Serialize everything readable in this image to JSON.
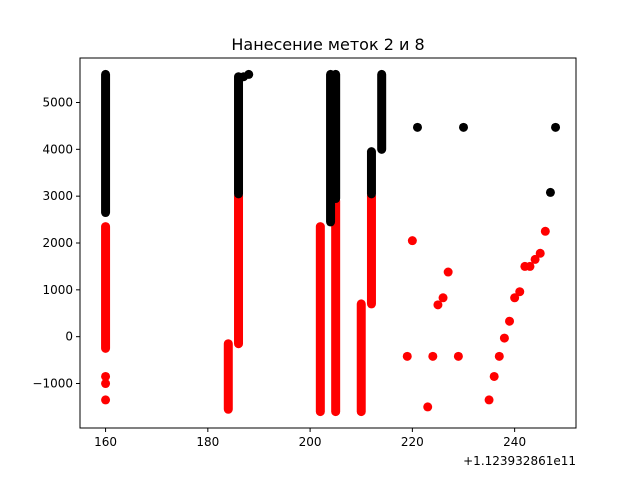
{
  "chart_data": {
    "type": "scatter",
    "title": "Нанесение меток 2 и 8",
    "xlabel": "",
    "ylabel": "",
    "x_offset_label": "+1.123932861e11",
    "xlim": [
      155,
      252
    ],
    "ylim": [
      -1950,
      5950
    ],
    "xticks": [
      160,
      180,
      200,
      220,
      240
    ],
    "yticks": [
      -1000,
      0,
      1000,
      2000,
      3000,
      4000,
      5000
    ],
    "ytick_labels": [
      "−1000",
      "0",
      "1000",
      "2000",
      "3000",
      "4000",
      "5000"
    ],
    "grid": false,
    "legend": "none",
    "series": [
      {
        "color": "#ff0000",
        "segments": [
          {
            "x": 160,
            "y_from": -250,
            "y_to": 2350
          },
          {
            "x": 184,
            "y_from": -1550,
            "y_to": -150
          },
          {
            "x": 186,
            "y_from": -150,
            "y_to": 3000
          },
          {
            "x": 202,
            "y_from": -1600,
            "y_to": 2350
          },
          {
            "x": 205,
            "y_from": -1600,
            "y_to": 2900
          },
          {
            "x": 210,
            "y_from": -1600,
            "y_to": 700
          },
          {
            "x": 212,
            "y_from": 700,
            "y_to": 3000
          }
        ],
        "points": [
          {
            "x": 160,
            "y": -1350
          },
          {
            "x": 160,
            "y": -1000
          },
          {
            "x": 160,
            "y": -850
          },
          {
            "x": 219,
            "y": -420
          },
          {
            "x": 220,
            "y": 2050
          },
          {
            "x": 223,
            "y": -1500
          },
          {
            "x": 224,
            "y": -420
          },
          {
            "x": 225,
            "y": 680
          },
          {
            "x": 226,
            "y": 830
          },
          {
            "x": 227,
            "y": 1380
          },
          {
            "x": 229,
            "y": -420
          },
          {
            "x": 235,
            "y": -1350
          },
          {
            "x": 236,
            "y": -850
          },
          {
            "x": 237,
            "y": -420
          },
          {
            "x": 238,
            "y": -30
          },
          {
            "x": 239,
            "y": 330
          },
          {
            "x": 240,
            "y": 830
          },
          {
            "x": 241,
            "y": 960
          },
          {
            "x": 242,
            "y": 1500
          },
          {
            "x": 243,
            "y": 1500
          },
          {
            "x": 244,
            "y": 1650
          },
          {
            "x": 245,
            "y": 1780
          },
          {
            "x": 246,
            "y": 2250
          }
        ]
      },
      {
        "color": "#000000",
        "segments": [
          {
            "x": 160,
            "y_from": 2650,
            "y_to": 5600
          },
          {
            "x": 186,
            "y_from": 3050,
            "y_to": 5550
          },
          {
            "x": 204,
            "y_from": 2450,
            "y_to": 5600
          },
          {
            "x": 205,
            "y_from": 2950,
            "y_to": 5600
          },
          {
            "x": 212,
            "y_from": 3050,
            "y_to": 3950
          },
          {
            "x": 214,
            "y_from": 4000,
            "y_to": 5600
          }
        ],
        "points": [
          {
            "x": 187,
            "y": 5550
          },
          {
            "x": 188,
            "y": 5600
          },
          {
            "x": 221,
            "y": 4470
          },
          {
            "x": 230,
            "y": 4470
          },
          {
            "x": 247,
            "y": 3080
          },
          {
            "x": 248,
            "y": 4470
          }
        ]
      }
    ]
  }
}
